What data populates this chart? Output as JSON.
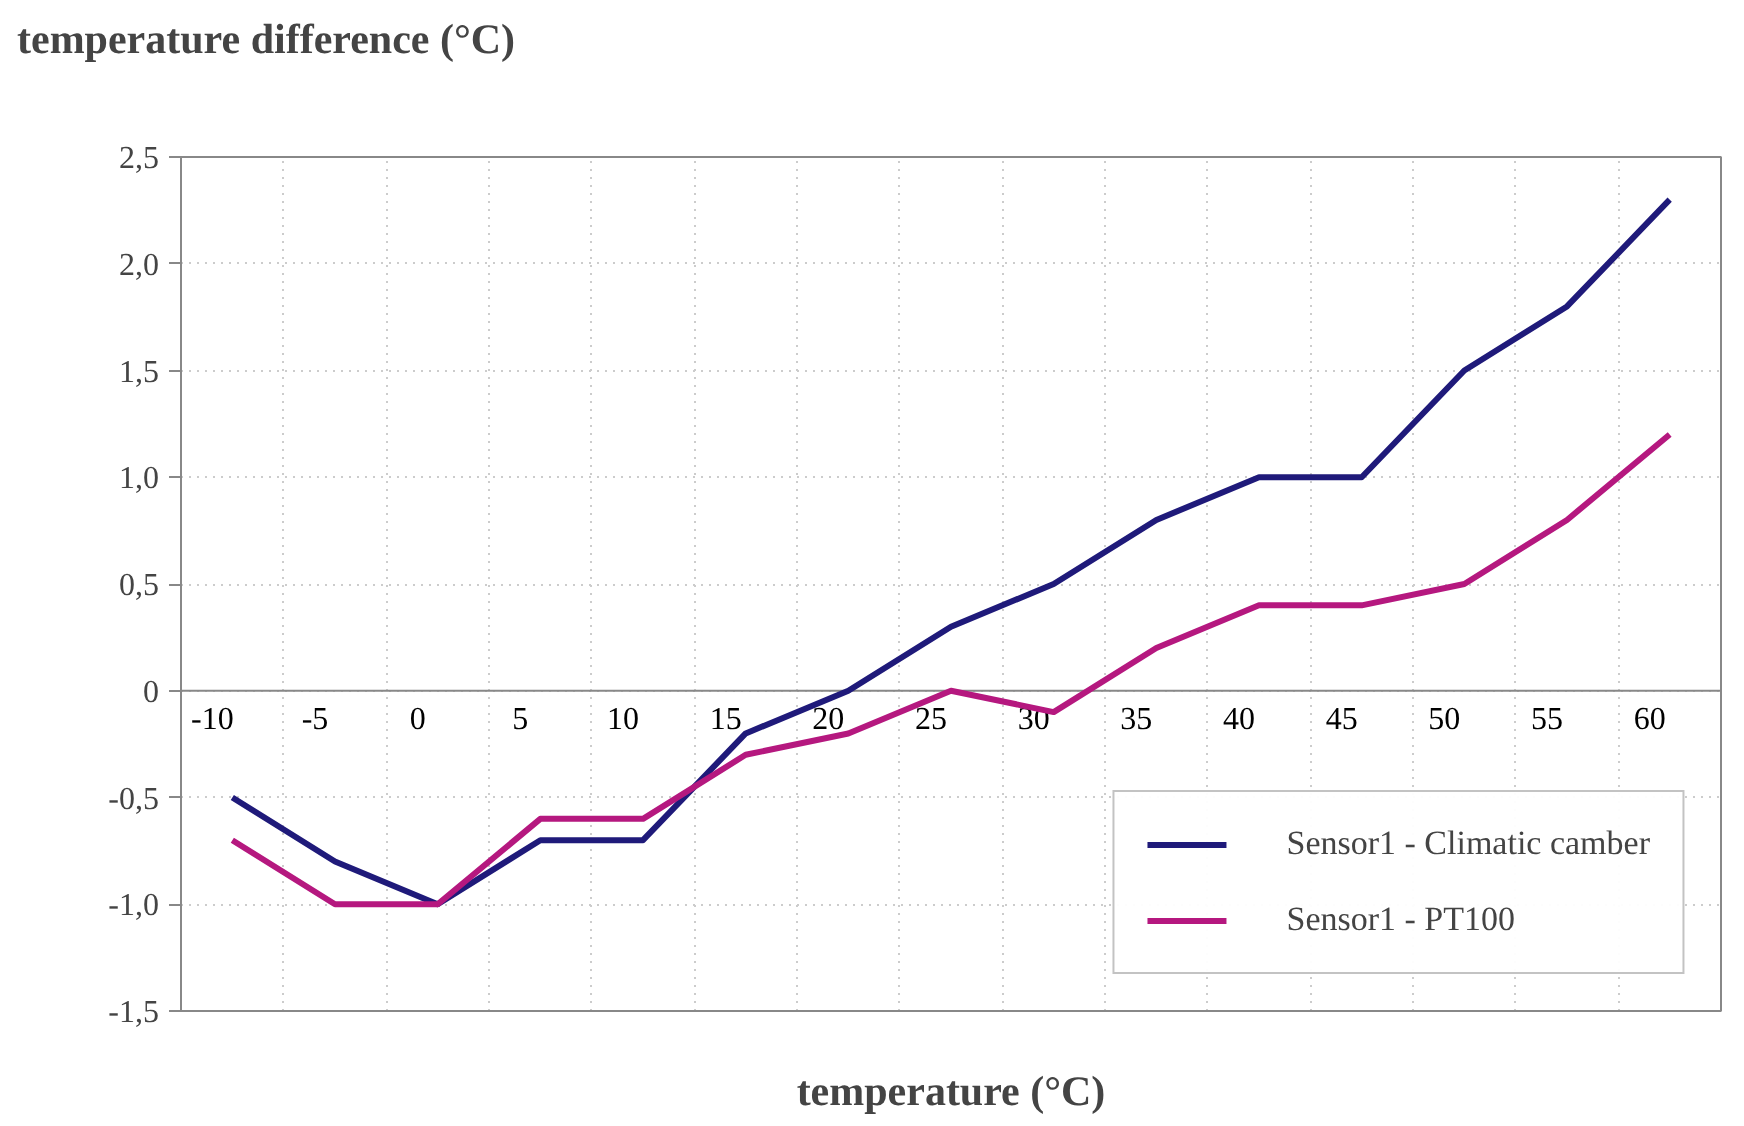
{
  "chart_data": {
    "type": "line",
    "ylabel": "temperature difference (°C)",
    "xlabel": "temperature (°C)",
    "categories": [
      "-10",
      "-5",
      "0",
      "5",
      "10",
      "15",
      "20",
      "25",
      "30",
      "35",
      "40",
      "45",
      "50",
      "55",
      "60"
    ],
    "series": [
      {
        "name": "Sensor1 - Climatic camber",
        "color": "#1f1a7a",
        "values": [
          -0.5,
          -0.8,
          -1.0,
          -0.7,
          -0.7,
          -0.2,
          0,
          0.3,
          0.5,
          0.8,
          1.0,
          1.0,
          1.5,
          1.8,
          2.3
        ]
      },
      {
        "name": "Sensor1 - PT100",
        "color": "#b5187f",
        "values": [
          -0.7,
          -1.0,
          -1.0,
          -0.6,
          -0.6,
          -0.3,
          -0.2,
          0,
          -0.1,
          0.2,
          0.4,
          0.4,
          0.5,
          0.8,
          1.2
        ]
      }
    ],
    "ylim": [
      -1.5,
      2.5
    ],
    "yticks": [
      {
        "value": -1.5,
        "label": "-1,5"
      },
      {
        "value": -1.0,
        "label": "-1,0"
      },
      {
        "value": -0.5,
        "label": "-0,5"
      },
      0,
      {
        "value": 0.5,
        "label": "0,5"
      },
      {
        "value": 1.0,
        "label": "1,0"
      },
      {
        "value": 1.5,
        "label": "1,5"
      },
      {
        "value": 2.0,
        "label": "2,0"
      },
      {
        "value": 2.5,
        "label": "2,5"
      }
    ],
    "grid": true,
    "legend": "bottom right",
    "marker": "none",
    "line_style": "solid"
  }
}
